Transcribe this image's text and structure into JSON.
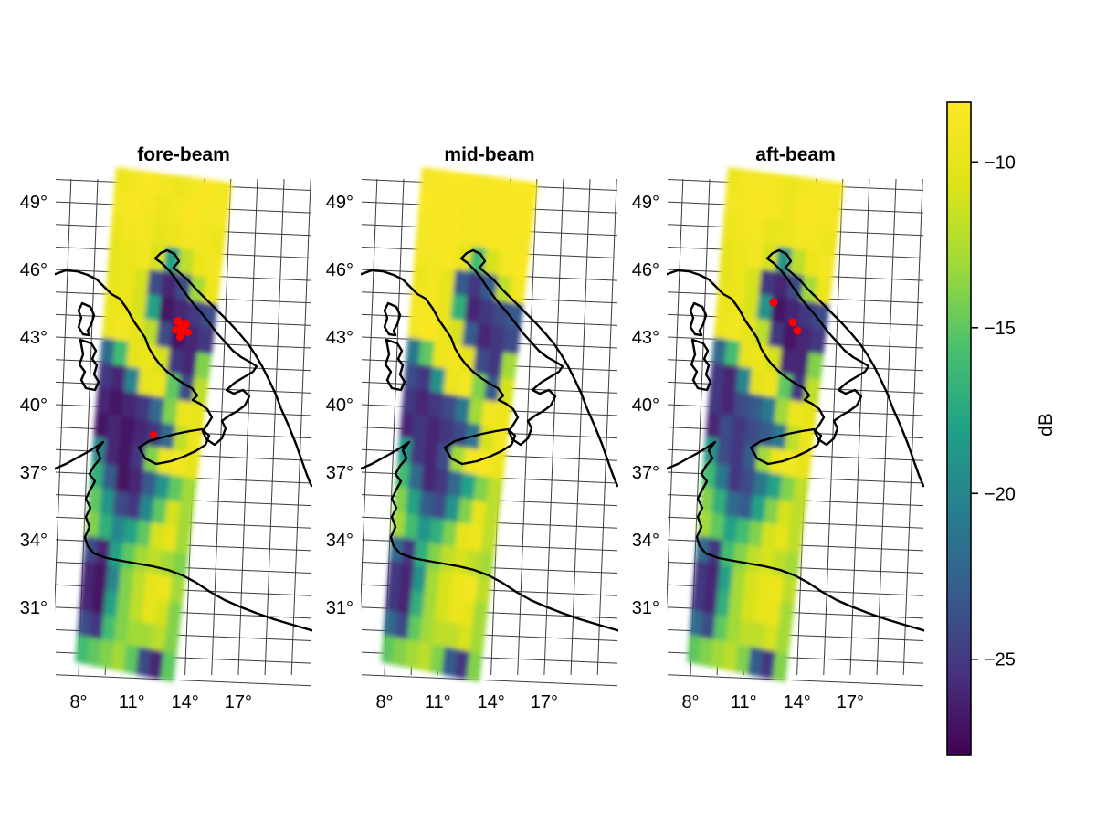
{
  "figure": {
    "background": "#ffffff"
  },
  "chart_data": {
    "type": "heatmap",
    "description": "Three faceted map panels of scatterometer backscatter (dB) swaths over Italy and the central Mediterranean, viridis colour scale, graticule grid, black coastlines, red quality-flag dots.",
    "x_ticks": [
      "8°",
      "11°",
      "14°",
      "17°"
    ],
    "y_ticks": [
      "49°",
      "46°",
      "43°",
      "40°",
      "37°",
      "34°",
      "31°"
    ],
    "grid": true,
    "marker_color": "#ff0000",
    "colorbar": {
      "title": "dB",
      "tick_labels": [
        "−10",
        "−15",
        "−20",
        "−25"
      ],
      "tick_values": [
        -10,
        -15,
        -20,
        -25
      ],
      "limits_db": [
        -27.9,
        -8.2
      ],
      "palette": "viridis",
      "position": "right"
    },
    "panels": [
      {
        "title": "fore-beam",
        "values_db": [
          [
            -9.5,
            -9,
            -8.5,
            -9,
            -9.5,
            -9,
            -8.5,
            -9
          ],
          [
            -9,
            -8.5,
            -9,
            -9.5,
            -9,
            -8.5,
            -9,
            -9
          ],
          [
            -9.5,
            -9,
            -9,
            -10,
            -9.5,
            -9,
            -9,
            -9.5
          ],
          [
            -10,
            -9.5,
            -9,
            -11,
            -18,
            -12,
            -9.5,
            -9
          ],
          [
            -10,
            -9.5,
            -11,
            -24,
            -26,
            -24,
            -13,
            -9.5
          ],
          [
            -9.5,
            -9.5,
            -11,
            -18,
            -27,
            -26,
            -25,
            -24
          ],
          [
            -9.5,
            -9,
            -10,
            -12,
            -24,
            -27,
            -26,
            -25
          ],
          [
            -22,
            -16,
            -10,
            -9.5,
            -11,
            -25,
            -26,
            -14
          ],
          [
            -25,
            -26,
            -20,
            -10,
            -9.5,
            -15,
            -24,
            -12
          ],
          [
            -26,
            -27,
            -26,
            -25,
            -22,
            -14,
            -9.5,
            -10
          ],
          [
            -27,
            -26,
            -27,
            -26,
            -25,
            -22,
            -12,
            -9.5
          ],
          [
            -20,
            -26,
            -27,
            -25,
            -14,
            -9.5,
            -9,
            -10
          ],
          [
            -17,
            -23,
            -27,
            -26,
            -23,
            -19,
            -15,
            -13
          ],
          [
            -15,
            -19,
            -24,
            -25,
            -20,
            -15,
            -11,
            -13
          ],
          [
            -14,
            -17,
            -20,
            -18,
            -15,
            -11,
            -10,
            -13
          ],
          [
            -24,
            -26,
            -18,
            -15,
            -13,
            -12,
            -13,
            -14
          ],
          [
            -26,
            -27,
            -20,
            -14,
            -12,
            -10,
            -9.5,
            -13
          ],
          [
            -26,
            -27,
            -18,
            -14,
            -12,
            -10,
            -11,
            -14
          ],
          [
            -24,
            -25,
            -16,
            -14,
            -13,
            -13,
            -12,
            -14
          ],
          [
            -16,
            -15,
            -14,
            -13,
            -15,
            -24,
            -26,
            -15
          ]
        ],
        "markers": [
          {
            "x": 195,
            "y": 352,
            "r": 5,
            "lon": 12.9,
            "lat": 43.7
          },
          {
            "x": 203,
            "y": 355,
            "r": 5,
            "lon": 13.3,
            "lat": 43.6
          },
          {
            "x": 199,
            "y": 362,
            "r": 6,
            "lon": 13.1,
            "lat": 43.3
          },
          {
            "x": 206,
            "y": 364,
            "r": 4,
            "lon": 13.5,
            "lat": 43.2
          },
          {
            "x": 192,
            "y": 361,
            "r": 4,
            "lon": 12.8,
            "lat": 43.3
          },
          {
            "x": 197,
            "y": 369,
            "r": 4,
            "lon": 13.0,
            "lat": 43.0
          },
          {
            "x": 168,
            "y": 476,
            "r": 4,
            "lon": 11.7,
            "lat": 38.6
          }
        ]
      },
      {
        "title": "mid-beam",
        "values_db": [
          [
            -9,
            -8.5,
            -8.5,
            -8.5,
            -9,
            -8.5,
            -8.5,
            -8.5
          ],
          [
            -8.5,
            -8.5,
            -8.5,
            -9,
            -8.5,
            -8.5,
            -8.5,
            -8.5
          ],
          [
            -9,
            -8.5,
            -8.5,
            -9,
            -9,
            -8.5,
            -8.5,
            -9
          ],
          [
            -9,
            -9,
            -8.5,
            -10,
            -16,
            -11,
            -9,
            -8.5
          ],
          [
            -9.5,
            -9,
            -10,
            -23,
            -25,
            -23,
            -12,
            -9
          ],
          [
            -9,
            -9,
            -10,
            -17,
            -26,
            -25,
            -24,
            -23
          ],
          [
            -9,
            -8.5,
            -9.5,
            -11,
            -23,
            -26,
            -25,
            -24
          ],
          [
            -21,
            -15,
            -9.5,
            -9,
            -10,
            -24,
            -25,
            -13
          ],
          [
            -24,
            -25,
            -19,
            -9.5,
            -9,
            -14,
            -23,
            -11
          ],
          [
            -25,
            -26,
            -25,
            -24,
            -21,
            -13,
            -9,
            -9.5
          ],
          [
            -26,
            -25,
            -26,
            -25,
            -24,
            -21,
            -11,
            -9
          ],
          [
            -19,
            -25,
            -26,
            -24,
            -13,
            -9,
            -8.5,
            -9.5
          ],
          [
            -16,
            -22,
            -26,
            -25,
            -22,
            -18,
            -14,
            -12
          ],
          [
            -14,
            -18,
            -23,
            -24,
            -19,
            -14,
            -10,
            -12
          ],
          [
            -13,
            -16,
            -19,
            -17,
            -14,
            -10,
            -9.5,
            -12
          ],
          [
            -22,
            -25,
            -17,
            -14,
            -12,
            -11,
            -12,
            -13
          ],
          [
            -25,
            -26,
            -19,
            -13,
            -11,
            -9.5,
            -9,
            -12
          ],
          [
            -25,
            -26,
            -17,
            -13,
            -11,
            -9.5,
            -10,
            -13
          ],
          [
            -22,
            -24,
            -15,
            -13,
            -12,
            -12,
            -11,
            -13
          ],
          [
            -15,
            -14,
            -13,
            -12,
            -14,
            -23,
            -25,
            -14
          ]
        ],
        "markers": []
      },
      {
        "title": "aft-beam",
        "values_db": [
          [
            -9.5,
            -9,
            -9,
            -9,
            -9.5,
            -9,
            -9,
            -9
          ],
          [
            -9,
            -9,
            -8.5,
            -9,
            -9.5,
            -8.5,
            -9,
            -9
          ],
          [
            -9.5,
            -9,
            -9,
            -10,
            -9.5,
            -9,
            -9,
            -9.5
          ],
          [
            -10,
            -9.5,
            -9,
            -11,
            -19,
            -12,
            -9.5,
            -9
          ],
          [
            -10,
            -9.5,
            -11,
            -25,
            -26,
            -24,
            -13,
            -9.5
          ],
          [
            -9.5,
            -9.5,
            -11,
            -19,
            -27,
            -26,
            -25,
            -24
          ],
          [
            -9.5,
            -9,
            -10,
            -12,
            -25,
            -27,
            -26,
            -25
          ],
          [
            -22,
            -16,
            -10,
            -9.5,
            -11,
            -26,
            -26,
            -14
          ],
          [
            -25,
            -26,
            -20,
            -10,
            -9.5,
            -15,
            -25,
            -12
          ],
          [
            -25,
            -26,
            -24,
            -23,
            -21,
            -13,
            -9.5,
            -10
          ],
          [
            -26,
            -24,
            -25,
            -24,
            -23,
            -21,
            -12,
            -9.5
          ],
          [
            -19,
            -24,
            -25,
            -23,
            -13,
            -9.5,
            -9,
            -10
          ],
          [
            -16,
            -21,
            -25,
            -24,
            -21,
            -18,
            -14,
            -12
          ],
          [
            -14,
            -17,
            -22,
            -23,
            -18,
            -14,
            -11,
            -12
          ],
          [
            -13,
            -15,
            -18,
            -16,
            -14,
            -11,
            -10,
            -12
          ],
          [
            -22,
            -25,
            -16,
            -14,
            -12,
            -11,
            -12,
            -13
          ],
          [
            -25,
            -26,
            -18,
            -13,
            -11,
            -10,
            -9.5,
            -12
          ],
          [
            -25,
            -26,
            -17,
            -13,
            -11,
            -10,
            -10,
            -13
          ],
          [
            -22,
            -24,
            -15,
            -13,
            -12,
            -12,
            -11,
            -13
          ],
          [
            -15,
            -14,
            -13,
            -12,
            -14,
            -23,
            -25,
            -14
          ]
        ],
        "markers": [
          {
            "x": 177,
            "y": 331,
            "r": 4.5,
            "lon": 12.3,
            "lat": 44.5
          },
          {
            "x": 198,
            "y": 353,
            "r": 4.5,
            "lon": 13.2,
            "lat": 43.6
          },
          {
            "x": 203,
            "y": 362,
            "r": 4.5,
            "lon": 13.5,
            "lat": 43.3
          }
        ]
      }
    ]
  }
}
